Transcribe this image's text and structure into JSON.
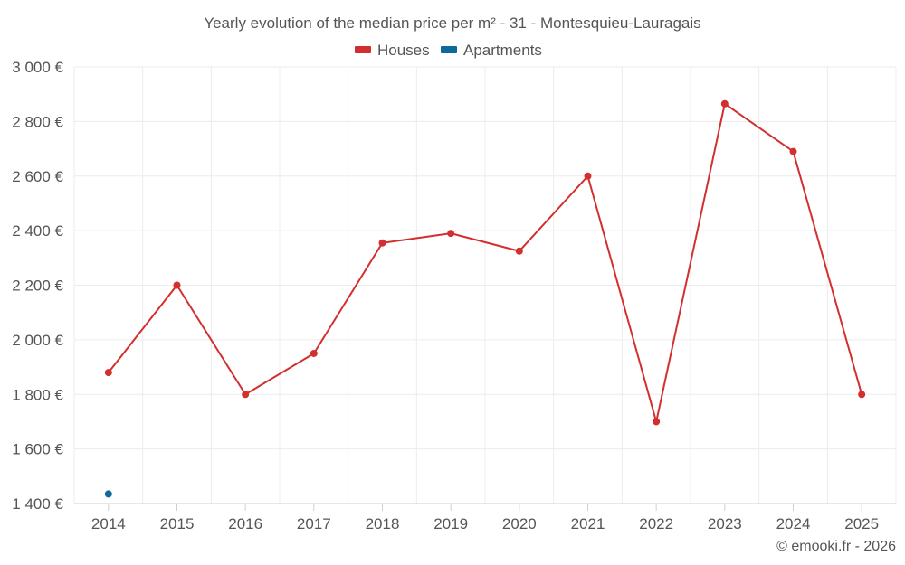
{
  "chart_data": {
    "type": "line",
    "title": "Yearly evolution of the median price per m² - 31 - Montesquieu-Lauragais",
    "categories": [
      "2014",
      "2015",
      "2016",
      "2017",
      "2018",
      "2019",
      "2020",
      "2021",
      "2022",
      "2023",
      "2024",
      "2025"
    ],
    "xlabel": "",
    "ylabel": "",
    "ylim": [
      1400,
      3000
    ],
    "y_ticks": [
      1400,
      1600,
      1800,
      2000,
      2200,
      2400,
      2600,
      2800,
      3000
    ],
    "y_tick_labels": [
      "1 400 €",
      "1 600 €",
      "1 800 €",
      "2 000 €",
      "2 200 €",
      "2 400 €",
      "2 600 €",
      "2 800 €",
      "3 000 €"
    ],
    "grid": true,
    "legend_position": "top-center",
    "series": [
      {
        "name": "Houses",
        "color": "#d32f2f",
        "values": [
          1880,
          2200,
          1800,
          1950,
          2355,
          2390,
          2325,
          2600,
          1700,
          2865,
          2690,
          1800
        ]
      },
      {
        "name": "Apartments",
        "color": "#0d6a9a",
        "values": [
          1435,
          null,
          null,
          null,
          null,
          null,
          null,
          null,
          null,
          null,
          null,
          null
        ]
      }
    ]
  },
  "credit": "© emooki.fr - 2026"
}
